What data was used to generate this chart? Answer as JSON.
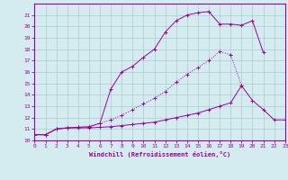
{
  "xlabel": "Windchill (Refroidissement éolien,°C)",
  "bg_color": "#d4ecef",
  "line_color": "#990099",
  "grid_color": "#aacccc",
  "xlim": [
    0,
    23
  ],
  "ylim": [
    10,
    22
  ],
  "xticks": [
    0,
    1,
    2,
    3,
    4,
    5,
    6,
    7,
    8,
    9,
    10,
    11,
    12,
    13,
    14,
    15,
    16,
    17,
    18,
    19,
    20,
    21,
    22,
    23
  ],
  "yticks": [
    10,
    11,
    12,
    13,
    14,
    15,
    16,
    17,
    18,
    19,
    20,
    21
  ],
  "line1_x": [
    0,
    1,
    2,
    3,
    4,
    5,
    6,
    7,
    8,
    9,
    10,
    11,
    12,
    13,
    14,
    15,
    16,
    17,
    18,
    19,
    20,
    21,
    22,
    23
  ],
  "line1_y": [
    10.5,
    10.5,
    11.0,
    11.1,
    11.1,
    11.1,
    11.15,
    11.2,
    11.3,
    11.4,
    11.5,
    11.6,
    11.8,
    12.0,
    12.2,
    12.4,
    12.7,
    13.0,
    13.3,
    14.8,
    13.5,
    12.7,
    11.8,
    11.8
  ],
  "line2_x": [
    0,
    1,
    2,
    3,
    4,
    5,
    6,
    7,
    8,
    9,
    10,
    11,
    12,
    13,
    14,
    15,
    16,
    17,
    18,
    19,
    20,
    21,
    22,
    23
  ],
  "line2_y": [
    10.5,
    10.5,
    11.0,
    11.1,
    11.15,
    11.2,
    11.5,
    11.8,
    12.2,
    12.7,
    13.2,
    13.7,
    14.3,
    15.1,
    15.8,
    16.4,
    17.0,
    17.8,
    17.5,
    14.8,
    null,
    null,
    null,
    null
  ],
  "line3_x": [
    0,
    1,
    2,
    3,
    4,
    5,
    6,
    7,
    8,
    9,
    10,
    11,
    12,
    13,
    14,
    15,
    16,
    17,
    18,
    19,
    20,
    21,
    22,
    23
  ],
  "line3_y": [
    10.5,
    10.5,
    11.0,
    11.1,
    11.15,
    11.2,
    11.5,
    14.5,
    16.0,
    16.5,
    17.3,
    18.0,
    19.5,
    20.5,
    21.0,
    21.2,
    21.3,
    20.2,
    20.2,
    20.1,
    20.5,
    17.7,
    null,
    null
  ]
}
